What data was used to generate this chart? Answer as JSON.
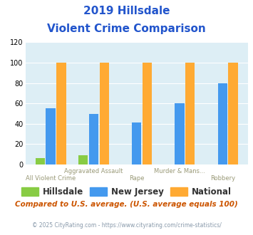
{
  "title_line1": "2019 Hillsdale",
  "title_line2": "Violent Crime Comparison",
  "cat_top": [
    "",
    "Aggravated Assault",
    "",
    "Murder & Mans...",
    ""
  ],
  "cat_bot": [
    "All Violent Crime",
    "",
    "Rape",
    "",
    "Robbery"
  ],
  "hillsdale": [
    6,
    9,
    0,
    0,
    0
  ],
  "new_jersey": [
    55,
    50,
    41,
    60,
    80
  ],
  "national": [
    100,
    100,
    100,
    100,
    100
  ],
  "color_hillsdale": "#88cc44",
  "color_nj": "#4499ee",
  "color_national": "#ffaa33",
  "ylim": [
    0,
    120
  ],
  "yticks": [
    0,
    20,
    40,
    60,
    80,
    100,
    120
  ],
  "bg_color": "#ddeef5",
  "title_color": "#2255cc",
  "subtitle_note": "Compared to U.S. average. (U.S. average equals 100)",
  "footer": "© 2025 CityRating.com - https://www.cityrating.com/crime-statistics/",
  "legend_labels": [
    "Hillsdale",
    "New Jersey",
    "National"
  ]
}
